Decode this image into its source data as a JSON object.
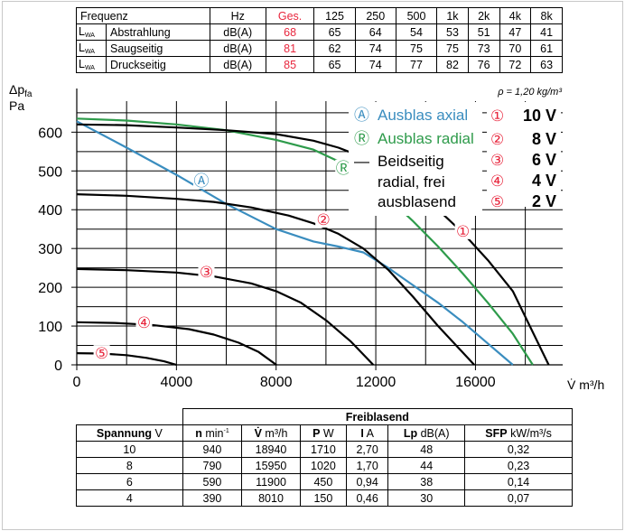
{
  "top_table": {
    "header": [
      "Frequenz",
      "Hz",
      "Ges.",
      "125",
      "250",
      "500",
      "1k",
      "2k",
      "4k",
      "8k"
    ],
    "rows": [
      {
        "sym": "L",
        "sub": "WA",
        "label": "Abstrahlung",
        "unit": "dB(A)",
        "ges": "68",
        "values": [
          "65",
          "64",
          "54",
          "53",
          "51",
          "47",
          "41"
        ]
      },
      {
        "sym": "L",
        "sub": "WA",
        "label": "Saugseitig",
        "unit": "dB(A)",
        "ges": "81",
        "values": [
          "62",
          "74",
          "75",
          "75",
          "73",
          "70",
          "61"
        ]
      },
      {
        "sym": "L",
        "sub": "WA",
        "label": "Druckseitig",
        "unit": "dB(A)",
        "ges": "85",
        "values": [
          "65",
          "74",
          "77",
          "82",
          "76",
          "72",
          "63"
        ]
      }
    ]
  },
  "chart_data": {
    "type": "line",
    "ylabel_main": "Δp",
    "ylabel_sub": "fa",
    "ylabel_unit": "Pa",
    "xlabel": "V̇  m³/h",
    "density_note": "ρ = 1,20 kg/m³",
    "xlim": [
      0,
      19500
    ],
    "ylim": [
      0,
      680
    ],
    "xticks": [
      "0",
      "4000",
      "8000",
      "12000",
      "16000"
    ],
    "xtick_values": [
      0,
      4000,
      8000,
      12000,
      16000
    ],
    "yticks": [
      "0",
      "100",
      "200",
      "300",
      "400",
      "500",
      "600"
    ],
    "ytick_values": [
      0,
      100,
      200,
      300,
      400,
      500,
      600
    ],
    "grid": true,
    "colors": {
      "axial": "#3a8dbf",
      "radial": "#2e9b4b",
      "black": "#000000",
      "marker": "#e8263d"
    },
    "legend": [
      {
        "symbol": "Ⓐ",
        "label": "Ausblas axial",
        "color": "#3a8dbf"
      },
      {
        "symbol": "Ⓡ",
        "label": "Ausblas radial",
        "color": "#2e9b4b"
      },
      {
        "symbol": "—",
        "label": "Beidseitig",
        "color": "#000000"
      },
      {
        "symbol": "",
        "label": "radial, frei",
        "color": "#000000"
      },
      {
        "symbol": "",
        "label": "ausblasend",
        "color": "#000000"
      }
    ],
    "voltage_legend": [
      {
        "symbol": "①",
        "label": "10 V"
      },
      {
        "symbol": "②",
        "label": "8 V"
      },
      {
        "symbol": "③",
        "label": "6 V"
      },
      {
        "symbol": "④",
        "label": "4 V"
      },
      {
        "symbol": "⑤",
        "label": "2 V"
      }
    ],
    "series": [
      {
        "name": "Ausblas axial",
        "marker": "Ⓐ",
        "marker_at": [
          5000,
          475
        ],
        "color": "#3a8dbf",
        "x": [
          0,
          2000,
          4000,
          6000,
          8000,
          9500,
          10500,
          11500,
          12500,
          13500,
          14500,
          15500,
          16500,
          17500
        ],
        "y": [
          628,
          560,
          490,
          415,
          350,
          318,
          305,
          290,
          250,
          205,
          160,
          110,
          55,
          0
        ]
      },
      {
        "name": "Ausblas radial",
        "marker": "Ⓡ",
        "marker_at": [
          10700,
          508
        ],
        "color": "#2e9b4b",
        "x": [
          0,
          2000,
          4000,
          6000,
          8000,
          9500,
          10500,
          11500,
          12500,
          13500,
          14500,
          15500,
          16500,
          17500,
          18300
        ],
        "y": [
          635,
          630,
          620,
          605,
          580,
          555,
          525,
          485,
          430,
          370,
          305,
          235,
          160,
          80,
          0
        ]
      },
      {
        "name": "10 V",
        "marker": "①",
        "marker_at": [
          15500,
          345
        ],
        "color": "#000000",
        "x": [
          0,
          2000,
          4000,
          6000,
          8000,
          9500,
          10500,
          11500,
          12500,
          13500,
          14500,
          15500,
          16500,
          17500,
          18940
        ],
        "y": [
          620,
          618,
          612,
          605,
          595,
          578,
          560,
          535,
          500,
          455,
          400,
          340,
          270,
          190,
          0
        ]
      },
      {
        "name": "8 V",
        "marker": "②",
        "marker_at": [
          9900,
          375
        ],
        "color": "#000000",
        "x": [
          0,
          2000,
          4000,
          5500,
          7000,
          8500,
          9500,
          10500,
          11500,
          12500,
          13500,
          14500,
          15950
        ],
        "y": [
          440,
          436,
          428,
          420,
          406,
          385,
          365,
          338,
          300,
          245,
          175,
          100,
          0
        ]
      },
      {
        "name": "6 V",
        "marker": "③",
        "marker_at": [
          5200,
          240
        ],
        "color": "#000000",
        "x": [
          0,
          2000,
          4000,
          5500,
          7000,
          8000,
          9000,
          10000,
          11000,
          11900
        ],
        "y": [
          247,
          244,
          238,
          228,
          210,
          190,
          160,
          115,
          60,
          0
        ]
      },
      {
        "name": "4 V",
        "marker": "④",
        "marker_at": [
          2700,
          110
        ],
        "color": "#000000",
        "x": [
          0,
          1500,
          3000,
          4500,
          5500,
          6500,
          7300,
          8010
        ],
        "y": [
          110,
          108,
          103,
          92,
          78,
          57,
          33,
          0
        ]
      },
      {
        "name": "2 V",
        "marker": "⑤",
        "marker_at": [
          1000,
          30
        ],
        "color": "#000000",
        "x": [
          0,
          1000,
          2000,
          2800,
          3500,
          4000
        ],
        "y": [
          30,
          29,
          25,
          18,
          9,
          0
        ]
      }
    ]
  },
  "bottom_table": {
    "group_header": "Freiblasend",
    "headers": [
      {
        "bold": "Spannung",
        "unit": " V"
      },
      {
        "bold": "n",
        "unit": " min",
        "sup": "-1"
      },
      {
        "bold": "V̇",
        "unit": " m³/h"
      },
      {
        "bold": "P",
        "unit": " W"
      },
      {
        "bold": "I",
        "unit": " A"
      },
      {
        "bold": "Lp",
        "unit": " dB(A)"
      },
      {
        "bold": "SFP",
        "unit": " kW/m³/s"
      }
    ],
    "rows": [
      [
        "10",
        "940",
        "18940",
        "1710",
        "2,70",
        "48",
        "0,32"
      ],
      [
        "8",
        "790",
        "15950",
        "1020",
        "1,70",
        "44",
        "0,23"
      ],
      [
        "6",
        "590",
        "11900",
        "450",
        "0,94",
        "38",
        "0,14"
      ],
      [
        "4",
        "390",
        "8010",
        "150",
        "0,46",
        "30",
        "0,07"
      ]
    ]
  }
}
